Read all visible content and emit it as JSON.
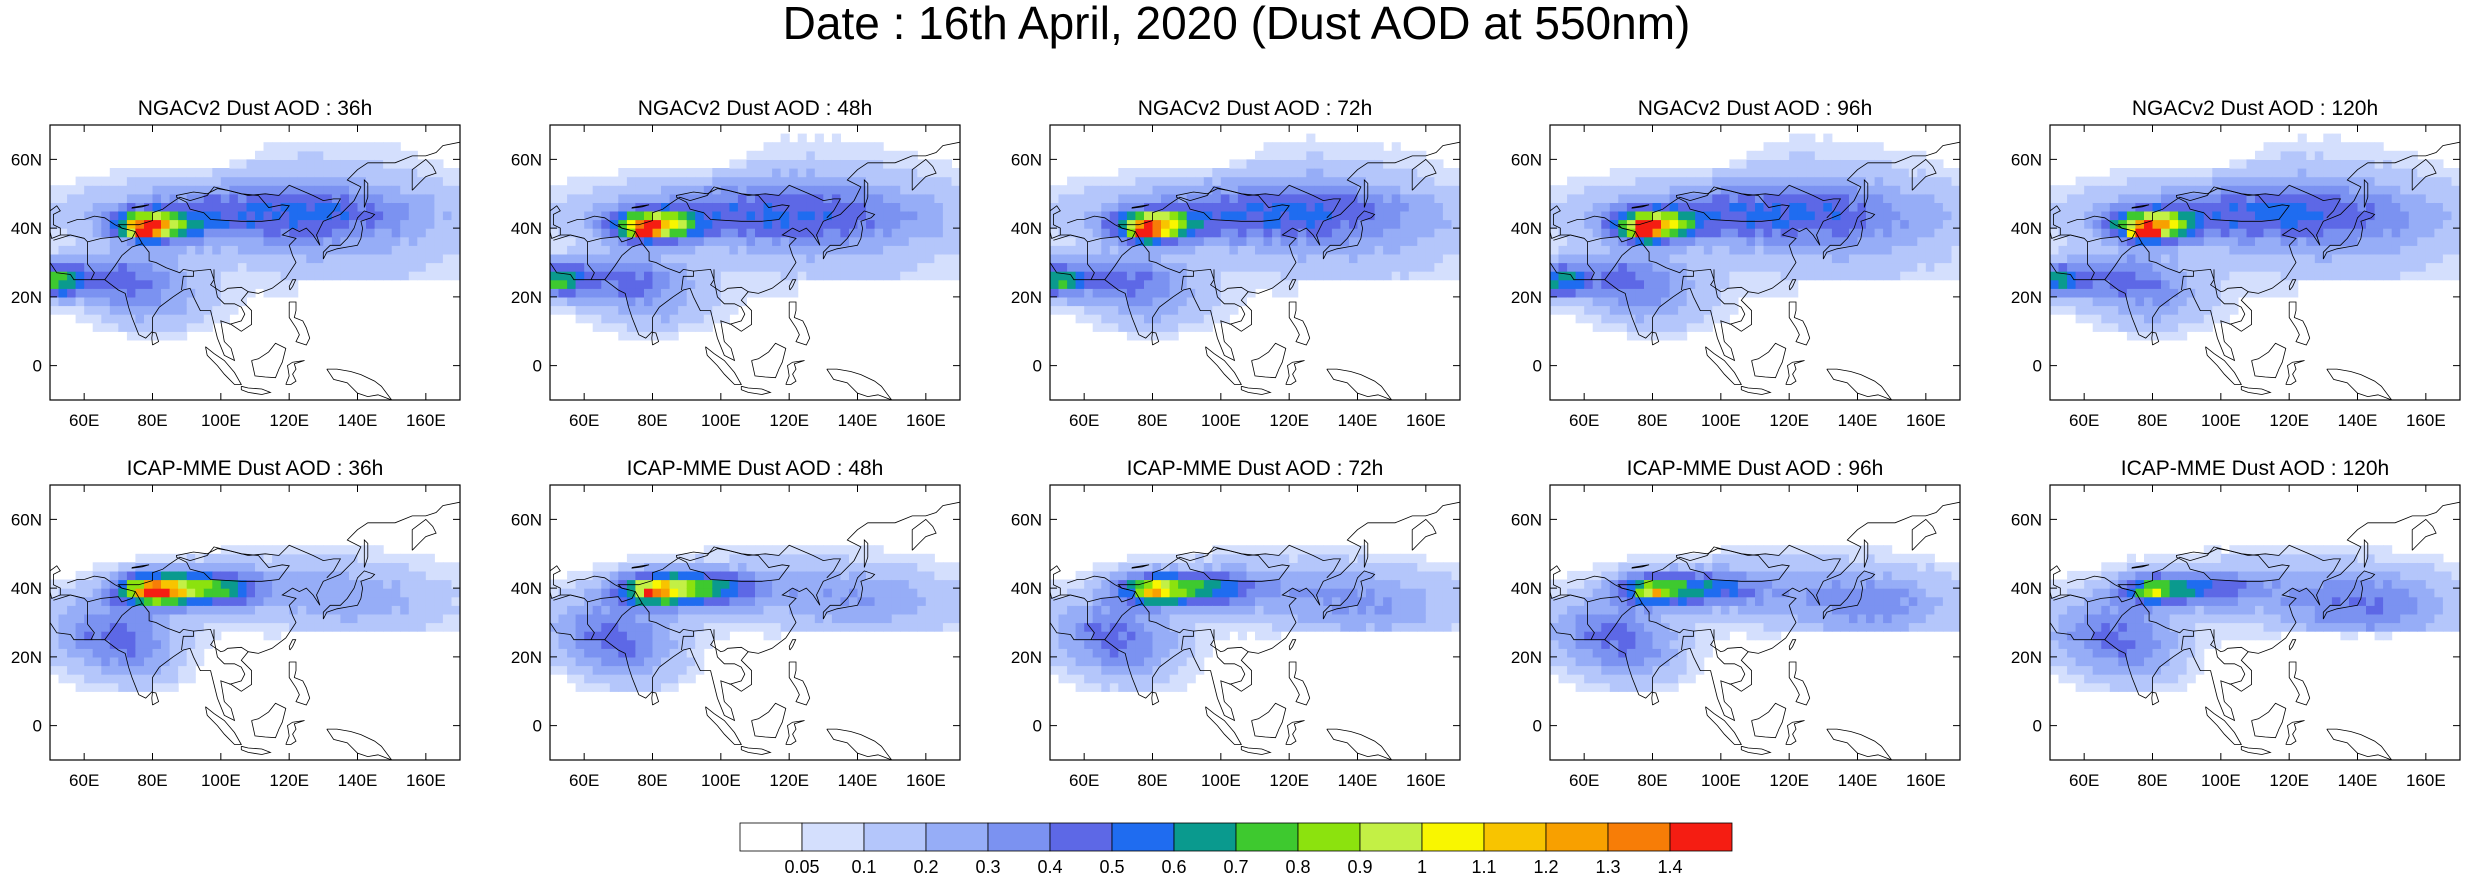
{
  "title": "Date : 16th April, 2020 (Dust AOD at 550nm)",
  "map": {
    "lon_range": [
      50,
      170
    ],
    "lat_range": [
      -10,
      70
    ],
    "x_tick_labels": [
      "60E",
      "80E",
      "100E",
      "120E",
      "140E",
      "160E"
    ],
    "x_tick_values": [
      60,
      80,
      100,
      120,
      140,
      160
    ],
    "y_tick_labels": [
      "0",
      "20N",
      "40N",
      "60N"
    ],
    "y_tick_values": [
      0,
      20,
      40,
      60
    ]
  },
  "panels": [
    {
      "title": "NGACv2 Dust AOD : 36h",
      "model": "NGACv2",
      "lead": "36h"
    },
    {
      "title": "NGACv2 Dust AOD : 48h",
      "model": "NGACv2",
      "lead": "48h"
    },
    {
      "title": "NGACv2 Dust AOD : 72h",
      "model": "NGACv2",
      "lead": "72h"
    },
    {
      "title": "NGACv2 Dust AOD : 96h",
      "model": "NGACv2",
      "lead": "96h"
    },
    {
      "title": "NGACv2 Dust AOD : 120h",
      "model": "NGACv2",
      "lead": "120h"
    },
    {
      "title": "ICAP-MME Dust AOD : 36h",
      "model": "ICAP-MME",
      "lead": "36h"
    },
    {
      "title": "ICAP-MME Dust AOD : 48h",
      "model": "ICAP-MME",
      "lead": "48h"
    },
    {
      "title": "ICAP-MME Dust AOD : 72h",
      "model": "ICAP-MME",
      "lead": "72h"
    },
    {
      "title": "ICAP-MME Dust AOD : 96h",
      "model": "ICAP-MME",
      "lead": "96h"
    },
    {
      "title": "ICAP-MME Dust AOD : 120h",
      "model": "ICAP-MME",
      "lead": "120h"
    }
  ],
  "colorbar": {
    "labels": [
      "0.05",
      "0.1",
      "0.2",
      "0.3",
      "0.4",
      "0.5",
      "0.6",
      "0.7",
      "0.8",
      "0.9",
      "1",
      "1.1",
      "1.2",
      "1.3",
      "1.4"
    ],
    "colors": [
      "#ffffff",
      "#d4dffd",
      "#b4c6fb",
      "#96adf7",
      "#7b92f1",
      "#5d68e6",
      "#1f6cf0",
      "#0a9a8e",
      "#3ec92f",
      "#8ce20e",
      "#c3f045",
      "#f9f600",
      "#f8c400",
      "#f8a000",
      "#f77d07",
      "#f51d12"
    ]
  }
}
